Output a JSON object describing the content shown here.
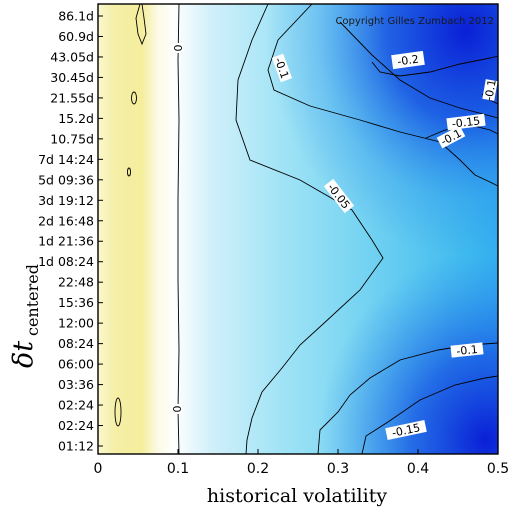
{
  "chart_data": {
    "type": "heatmap",
    "subtype": "contour",
    "xlabel": "historical volatility",
    "ylabel": "δt",
    "ylabel_subscript": "centered",
    "xlim": [
      0,
      0.5
    ],
    "x_ticks": [
      "0",
      "0.1",
      "0.2",
      "0.3",
      "0.4",
      "0.5"
    ],
    "y_ticks": [
      "01:12",
      "02:24",
      "02:24",
      "03:36",
      "06:00",
      "08:24",
      "12:00",
      "15:36",
      "22:48",
      "1d 08:24",
      "1d 21:36",
      "2d 16:48",
      "3d 19:12",
      "5d 09:36",
      "7d 14:24",
      "10.75d",
      "15.2d",
      "21.55d",
      "30.45d",
      "43.05d",
      "60.9d",
      "86.1d"
    ],
    "colormap": {
      "low": "#f3ee9c",
      "zero": "#ffffff",
      "mid": "#7fd8f2",
      "high": "#0a24d8"
    },
    "contour_labels": [
      "0",
      "0",
      "-0.05",
      "-0.1",
      "-0.1",
      "-0.1",
      "-0.15",
      "-0.15",
      "-0.1",
      "-0.2"
    ],
    "annotation": "Copyright Gilles Zumbach 2012",
    "grid": false,
    "legend": "none"
  }
}
